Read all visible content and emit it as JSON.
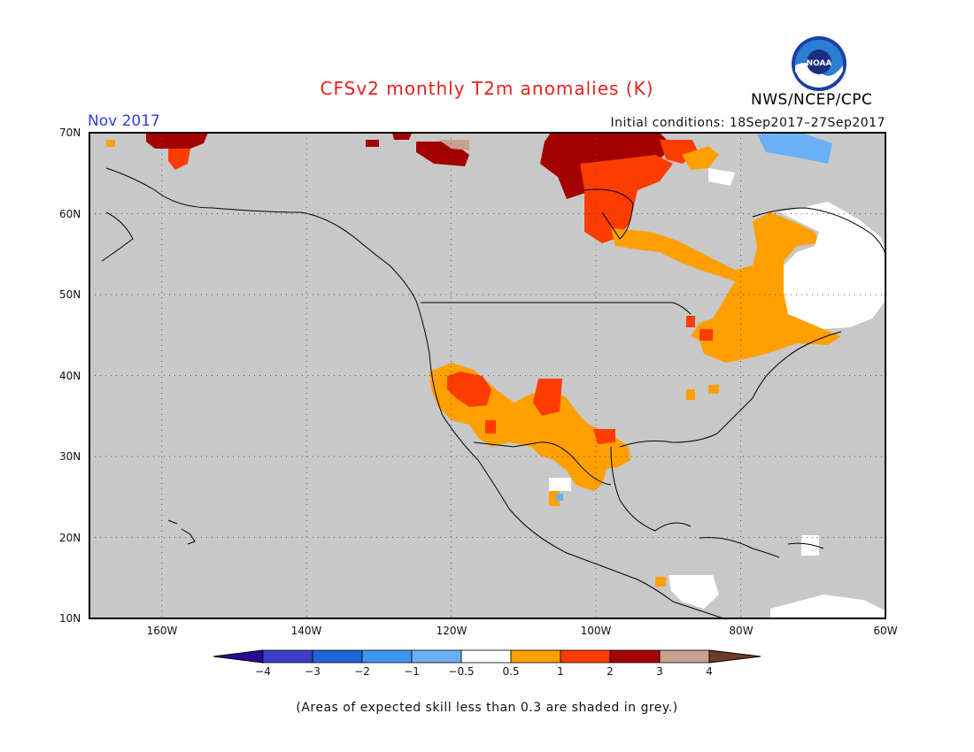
{
  "title": "CFSv2 monthly T2m anomalies (K)",
  "valid_month": "Nov 2017",
  "initial_conditions": "Initial conditions: 18Sep2017–27Sep2017",
  "agency": "NWS/NCEP/CPC",
  "logo_text": "NOAA",
  "footnote": "(Areas of expected skill less than 0.3 are shaded in grey.)",
  "colors": {
    "no_skill_grey": "#c8c8c8",
    "neutral": "#ffffff",
    "pos_0.5_1": "#ff9f00",
    "pos_1_2": "#ff3c00",
    "pos_2_3": "#a30000",
    "pos_3_4": "#c8a090",
    "pos_gt4": "#6e3c28",
    "neg_0.5_1": "#6ab0f5",
    "neg_1_2": "#3c96f0",
    "neg_2_3": "#1e64d2",
    "neg_3_4": "#3c3cc8",
    "neg_lt4": "#2a0a96"
  },
  "map": {
    "lon_range": [
      -170,
      -60
    ],
    "lat_range": [
      10,
      70
    ],
    "lat_ticks": [
      "70N",
      "60N",
      "50N",
      "40N",
      "30N",
      "20N",
      "10N"
    ],
    "lon_ticks": [
      "160W",
      "140W",
      "120W",
      "100W",
      "80W",
      "60W"
    ],
    "grid": "dotted",
    "background": "grey (low skill)"
  },
  "colorbar": {
    "labels": [
      "−4",
      "−3",
      "−2",
      "−1",
      "−0.5",
      "0.5",
      "1",
      "2",
      "3",
      "4"
    ],
    "left_arrow": "#2a0a96",
    "right_arrow": "#6e3c28",
    "boxes": [
      "#3c3cc8",
      "#1e64d2",
      "#3c96f0",
      "#6ab0f5",
      "#ffffff",
      "#ff9f00",
      "#ff3c00",
      "#a30000",
      "#c8a090"
    ]
  }
}
